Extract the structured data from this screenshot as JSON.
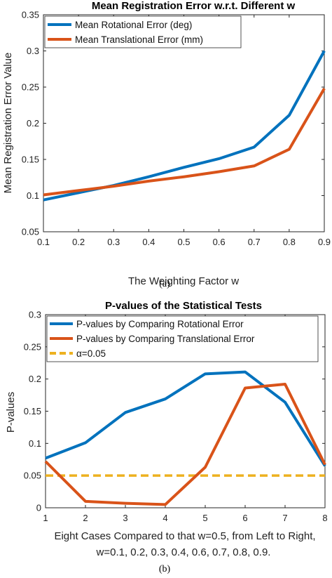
{
  "chart_data": [
    {
      "type": "line",
      "title": "Mean Registration Error w.r.t. Different w",
      "xlabel": "The Weighting Factor w",
      "ylabel": "Mean Registration Error Value",
      "xlim": [
        0.1,
        0.9
      ],
      "ylim": [
        0.05,
        0.35
      ],
      "x_ticks": [
        "0.1",
        "0.2",
        "0.3",
        "0.4",
        "0.5",
        "0.6",
        "0.7",
        "0.8",
        "0.9"
      ],
      "y_ticks": [
        "0.05",
        "0.1",
        "0.15",
        "0.2",
        "0.25",
        "0.3",
        "0.35"
      ],
      "legend_position": "top-left",
      "grid": false,
      "x": [
        0.1,
        0.2,
        0.3,
        0.4,
        0.5,
        0.6,
        0.7,
        0.8,
        0.9
      ],
      "series": [
        {
          "name": "Mean Rotational Error (deg)",
          "color": "#0072BD",
          "values": [
            0.094,
            0.104,
            0.114,
            0.126,
            0.139,
            0.151,
            0.167,
            0.211,
            0.3
          ]
        },
        {
          "name": "Mean Translational Error (mm)",
          "color": "#D95319",
          "values": [
            0.101,
            0.107,
            0.113,
            0.12,
            0.126,
            0.133,
            0.141,
            0.164,
            0.248
          ]
        }
      ],
      "caption": "(a)"
    },
    {
      "type": "line",
      "title": "P-values of the Statistical Tests",
      "xlabel": "Eight Cases Compared to that w=0.5, from Left to Right,",
      "xlabel2": "w=0.1, 0.2, 0.3, 0.4, 0.6, 0.7, 0.8, 0.9.",
      "ylabel": "P-values",
      "xlim": [
        1,
        8
      ],
      "ylim": [
        0,
        0.3
      ],
      "x_ticks": [
        "1",
        "2",
        "3",
        "4",
        "5",
        "6",
        "7",
        "8"
      ],
      "y_ticks": [
        "0",
        "0.05",
        "0.1",
        "0.15",
        "0.2",
        "0.25",
        "0.3"
      ],
      "legend_position": "top-left",
      "grid": false,
      "x": [
        1,
        2,
        3,
        4,
        5,
        6,
        7,
        8
      ],
      "series": [
        {
          "name": "P-values by Comparing Rotational Error",
          "color": "#0072BD",
          "values": [
            0.077,
            0.101,
            0.148,
            0.169,
            0.208,
            0.211,
            0.164,
            0.065
          ]
        },
        {
          "name": "P-values by Comparing Translational Error",
          "color": "#D95319",
          "values": [
            0.072,
            0.01,
            0.007,
            0.005,
            0.063,
            0.186,
            0.192,
            0.067
          ]
        }
      ],
      "threshold": {
        "name": "α=0.05",
        "value": 0.05,
        "color": "#EDB120",
        "style": "dashed"
      },
      "caption": "(b)"
    }
  ]
}
